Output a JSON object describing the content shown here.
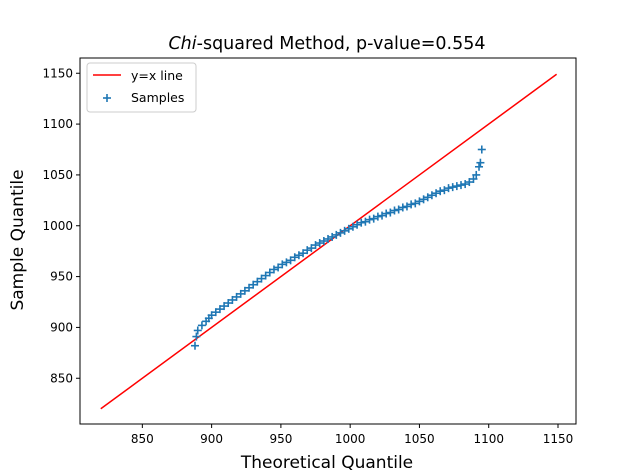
{
  "chart_data": {
    "type": "scatter",
    "title_italic": "Chi",
    "title_rest": "-squared Method, p-value=0.554",
    "xlabel": "Theoretical Quantile",
    "ylabel": "Sample Quantile",
    "xlim": [
      805,
      1163
    ],
    "ylim": [
      805,
      1165
    ],
    "xticks": [
      850,
      900,
      950,
      1000,
      1050,
      1100,
      1150
    ],
    "yticks": [
      850,
      900,
      950,
      1000,
      1050,
      1100,
      1150
    ],
    "grid": false,
    "legend_position": "upper-left",
    "legend": [
      "y=x line",
      "Samples"
    ],
    "colors": {
      "line": "#ff0000",
      "samples": "#1f77b4"
    },
    "reference_line": {
      "name": "y=x line",
      "x": [
        820,
        1149
      ],
      "y": [
        820,
        1149
      ]
    },
    "samples": {
      "name": "Samples",
      "marker": "plus",
      "points": [
        [
          888,
          882
        ],
        [
          889,
          891
        ],
        [
          890,
          897
        ],
        [
          893,
          902
        ],
        [
          896,
          906
        ],
        [
          898,
          909
        ],
        [
          900,
          912
        ],
        [
          903,
          915
        ],
        [
          906,
          918
        ],
        [
          909,
          921
        ],
        [
          912,
          924
        ],
        [
          915,
          927
        ],
        [
          918,
          930
        ],
        [
          921,
          933
        ],
        [
          924,
          936
        ],
        [
          927,
          939
        ],
        [
          930,
          942
        ],
        [
          933,
          945
        ],
        [
          936,
          948
        ],
        [
          939,
          951
        ],
        [
          942,
          954
        ],
        [
          945,
          957
        ],
        [
          948,
          959
        ],
        [
          951,
          962
        ],
        [
          954,
          964
        ],
        [
          957,
          966
        ],
        [
          960,
          969
        ],
        [
          963,
          971
        ],
        [
          966,
          973
        ],
        [
          969,
          976
        ],
        [
          972,
          978
        ],
        [
          975,
          981
        ],
        [
          978,
          983
        ],
        [
          981,
          985
        ],
        [
          984,
          987
        ],
        [
          987,
          989
        ],
        [
          990,
          991
        ],
        [
          993,
          993
        ],
        [
          996,
          995
        ],
        [
          999,
          997
        ],
        [
          1002,
          999
        ],
        [
          1005,
          1001
        ],
        [
          1008,
          1003
        ],
        [
          1011,
          1004
        ],
        [
          1014,
          1006
        ],
        [
          1017,
          1007
        ],
        [
          1020,
          1009
        ],
        [
          1023,
          1010
        ],
        [
          1026,
          1012
        ],
        [
          1029,
          1013
        ],
        [
          1032,
          1015
        ],
        [
          1035,
          1016
        ],
        [
          1038,
          1018
        ],
        [
          1041,
          1019
        ],
        [
          1044,
          1021
        ],
        [
          1047,
          1022
        ],
        [
          1050,
          1024
        ],
        [
          1053,
          1026
        ],
        [
          1056,
          1028
        ],
        [
          1059,
          1030
        ],
        [
          1062,
          1032
        ],
        [
          1065,
          1034
        ],
        [
          1068,
          1035
        ],
        [
          1071,
          1037
        ],
        [
          1074,
          1038
        ],
        [
          1077,
          1039
        ],
        [
          1080,
          1040
        ],
        [
          1083,
          1041
        ],
        [
          1086,
          1043
        ],
        [
          1089,
          1046
        ],
        [
          1091,
          1050
        ],
        [
          1093,
          1058
        ],
        [
          1094,
          1062
        ],
        [
          1095,
          1075
        ]
      ]
    }
  }
}
